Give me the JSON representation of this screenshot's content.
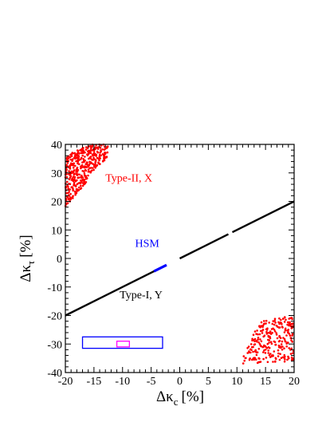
{
  "chart_data": {
    "type": "scatter",
    "title": "",
    "xlabel": {
      "main": "Δκ",
      "sub": "c",
      "unit": "[%]"
    },
    "ylabel": {
      "main": "Δκ",
      "sub": "τ",
      "unit": "[%]"
    },
    "xlim": [
      -20,
      20
    ],
    "ylim": [
      -40,
      40
    ],
    "xticks": [
      -20,
      -15,
      -10,
      -5,
      0,
      5,
      10,
      15,
      20
    ],
    "yticks": [
      -40,
      -30,
      -20,
      -10,
      0,
      10,
      20,
      30,
      40
    ],
    "grid": false,
    "series": [
      {
        "name": "Type-II, X",
        "color": "#ff0000",
        "clusters": [
          {
            "shape": "parallelogram",
            "corners": [
              [
                -20,
                18
              ],
              [
                -20,
                36
              ],
              [
                -16,
                40
              ],
              [
                -12.5,
                40
              ],
              [
                -12.5,
                36
              ]
            ],
            "count": 420
          },
          {
            "shape": "parallelogram",
            "corners": [
              [
                10.5,
                -37
              ],
              [
                14,
                -22
              ],
              [
                20,
                -20
              ],
              [
                20,
                -36
              ]
            ],
            "count": 260
          }
        ]
      },
      {
        "name": "Type-I, Y",
        "color": "#000000",
        "line": {
          "x_from": -20,
          "x_to": 20,
          "slope": 1.0,
          "intercept": 0
        },
        "gaps": [
          [
            8.5,
            9.2
          ],
          [
            -3.0,
            0.0
          ]
        ]
      },
      {
        "name": "HSM",
        "color": "#0000ff",
        "line": {
          "x_from": -4.5,
          "x_to": -2.3,
          "slope": 1.0,
          "intercept": 0
        }
      }
    ],
    "boxes": [
      {
        "name": "blue-box",
        "color": "#0000ff",
        "x": [
          -17,
          -3
        ],
        "y": [
          -31.5,
          -27.5
        ]
      },
      {
        "name": "magenta-box",
        "color": "#ff00ff",
        "x": [
          -11,
          -8.8
        ],
        "y": [
          -31,
          -29
        ]
      }
    ],
    "annotations": [
      {
        "text": "Type-II, X",
        "color": "#ff0000",
        "x": -13,
        "y": 27
      },
      {
        "text": "HSM",
        "color": "#0000ff",
        "x": -7.8,
        "y": 4
      },
      {
        "text": "Type-I, Y",
        "color": "#000000",
        "x": -10.5,
        "y": -14
      }
    ]
  }
}
